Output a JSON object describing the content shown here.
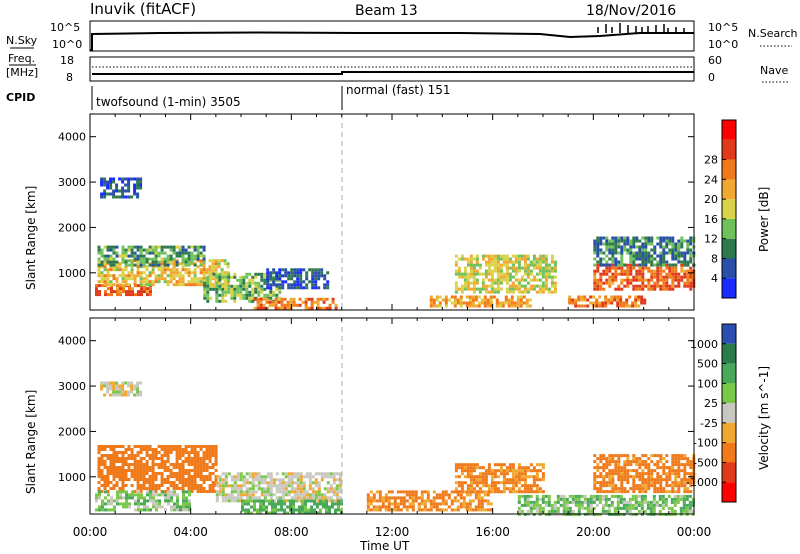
{
  "header": {
    "station": "Inuvik (fitACF)",
    "beam": "Beam 13",
    "date": "18/Nov/2016"
  },
  "noise_panel": {
    "left_label": "N.Sky",
    "right_label": "N.Search",
    "left_ticks": [
      "10^5",
      "10^0"
    ],
    "right_ticks": [
      "10^5",
      "10^0"
    ]
  },
  "freq_panel": {
    "left_label_top": "Freq.",
    "left_label_bottom": "[MHz]",
    "right_label": "Nave",
    "left_ticks": [
      "18",
      "8"
    ],
    "right_ticks": [
      "60",
      "0"
    ]
  },
  "cpid": {
    "label": "CPID",
    "segments": [
      "twofsound (1-min) 3505",
      "normal (fast) 151"
    ]
  },
  "time_axis": {
    "label": "Time UT",
    "ticks": [
      "00:00",
      "04:00",
      "08:00",
      "12:00",
      "16:00",
      "20:00",
      "00:00"
    ]
  },
  "chart_data": [
    {
      "type": "heatmap",
      "title": "",
      "xlabel": "Time UT",
      "ylabel": "Slant Range [km]",
      "xlim": [
        0,
        24
      ],
      "ylim": [
        180,
        4500
      ],
      "yticks": [
        1000,
        2000,
        3000,
        4000
      ],
      "colorbar": {
        "label": "Power [dB]",
        "ticks": [
          4,
          8,
          12,
          16,
          20,
          24,
          28
        ],
        "colors": [
          "#1a2bff",
          "#2a4fa8",
          "#2e7a4e",
          "#6fc25a",
          "#d9d24a",
          "#f0a830",
          "#f07a1a",
          "#e03a1a",
          "#ff0000"
        ]
      },
      "echo_regions": [
        {
          "t0": 0.2,
          "t1": 2.4,
          "r0": 500,
          "r1": 750,
          "level": 28
        },
        {
          "t0": 0.3,
          "t1": 5.5,
          "r0": 750,
          "r1": 1300,
          "level": 20
        },
        {
          "t0": 0.3,
          "t1": 4.5,
          "r0": 1200,
          "r1": 1600,
          "level": 12
        },
        {
          "t0": 4.5,
          "t1": 7.5,
          "r0": 400,
          "r1": 1000,
          "level": 14
        },
        {
          "t0": 6.5,
          "t1": 9.8,
          "r0": 200,
          "r1": 450,
          "level": 26
        },
        {
          "t0": 7.0,
          "t1": 9.5,
          "r0": 700,
          "r1": 1100,
          "level": 6
        },
        {
          "t0": 0.4,
          "t1": 2.0,
          "r0": 2700,
          "r1": 3100,
          "level": 6
        },
        {
          "t0": 13.5,
          "t1": 17.5,
          "r0": 300,
          "r1": 500,
          "level": 22
        },
        {
          "t0": 14.5,
          "t1": 18.5,
          "r0": 600,
          "r1": 1400,
          "level": 18
        },
        {
          "t0": 19.0,
          "t1": 22.0,
          "r0": 250,
          "r1": 500,
          "level": 26
        },
        {
          "t0": 20.0,
          "t1": 24.0,
          "r0": 650,
          "r1": 1200,
          "level": 28
        },
        {
          "t0": 20.0,
          "t1": 24.0,
          "r0": 1200,
          "r1": 1800,
          "level": 10
        }
      ]
    },
    {
      "type": "heatmap",
      "title": "",
      "xlabel": "Time UT",
      "ylabel": "Slant Range [km]",
      "xlim": [
        0,
        24
      ],
      "ylim": [
        180,
        4500
      ],
      "yticks": [
        1000,
        2000,
        3000,
        4000
      ],
      "colorbar": {
        "label": "Velocity [m s^-1]",
        "ticks": [
          1000,
          500,
          100,
          25,
          -25,
          -100,
          -500,
          -1000
        ],
        "colors": [
          "#2a4fb0",
          "#2a7a4a",
          "#4aa85a",
          "#7ac84a",
          "#c8c8c0",
          "#f0a830",
          "#f07a1a",
          "#e03a1a",
          "#ff0000"
        ]
      },
      "echo_regions": [
        {
          "t0": 0.3,
          "t1": 5.0,
          "r0": 700,
          "r1": 1700,
          "level": -300
        },
        {
          "t0": 0.2,
          "t1": 4.0,
          "r0": 300,
          "r1": 700,
          "level": 60
        },
        {
          "t0": 5.0,
          "t1": 10.0,
          "r0": 500,
          "r1": 1100,
          "level": 0
        },
        {
          "t0": 6.0,
          "t1": 10.0,
          "r0": 200,
          "r1": 500,
          "level": 150
        },
        {
          "t0": 0.4,
          "t1": 2.0,
          "r0": 2800,
          "r1": 3100,
          "level": 0
        },
        {
          "t0": 11.0,
          "t1": 16.0,
          "r0": 250,
          "r1": 700,
          "level": -150
        },
        {
          "t0": 14.5,
          "t1": 18.0,
          "r0": 700,
          "r1": 1300,
          "level": -150
        },
        {
          "t0": 17.0,
          "t1": 24.0,
          "r0": 200,
          "r1": 600,
          "level": 80
        },
        {
          "t0": 20.0,
          "t1": 24.0,
          "r0": 700,
          "r1": 1500,
          "level": -200
        }
      ]
    }
  ]
}
